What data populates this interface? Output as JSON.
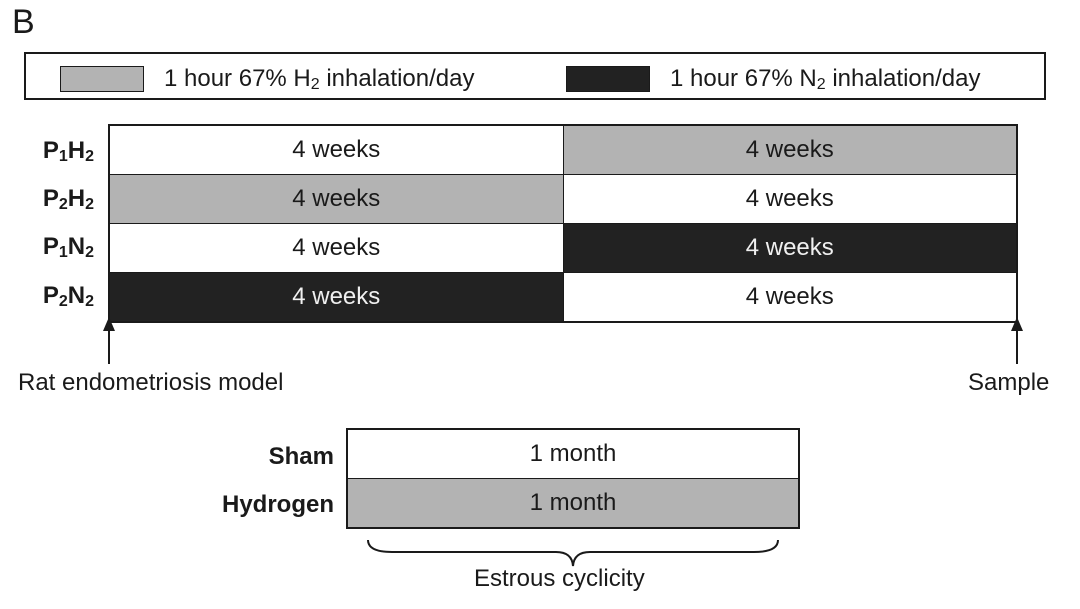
{
  "panel_label": "B",
  "legend": {
    "items": [
      {
        "text_before": "1 hour 67% H",
        "sub": "2",
        "text_after": " inhalation/day",
        "color": "#b3b3b3"
      },
      {
        "text_before": "1 hour 67% N",
        "sub": "2",
        "text_after": " inhalation/day",
        "color": "#222222"
      }
    ]
  },
  "protocol": {
    "rows": [
      {
        "label_main": "P",
        "label_sub1": "1",
        "label_mid": "H",
        "label_sub2": "2",
        "periods": [
          {
            "text": "4 weeks",
            "fill": "white"
          },
          {
            "text": "4 weeks",
            "fill": "grey"
          }
        ]
      },
      {
        "label_main": "P",
        "label_sub1": "2",
        "label_mid": "H",
        "label_sub2": "2",
        "periods": [
          {
            "text": "4 weeks",
            "fill": "grey"
          },
          {
            "text": "4 weeks",
            "fill": "white"
          }
        ]
      },
      {
        "label_main": "P",
        "label_sub1": "1",
        "label_mid": "N",
        "label_sub2": "2",
        "periods": [
          {
            "text": "4 weeks",
            "fill": "white"
          },
          {
            "text": "4 weeks",
            "fill": "dark"
          }
        ]
      },
      {
        "label_main": "P",
        "label_sub1": "2",
        "label_mid": "N",
        "label_sub2": "2",
        "periods": [
          {
            "text": "4 weeks",
            "fill": "dark"
          },
          {
            "text": "4 weeks",
            "fill": "white"
          }
        ]
      }
    ],
    "start_note": "Rat endometriosis model",
    "end_note": "Sample"
  },
  "cyclicity": {
    "rows": [
      {
        "label": "Sham",
        "text": "1 month",
        "fill": "white"
      },
      {
        "label": "Hydrogen",
        "text": "1 month",
        "fill": "grey"
      }
    ],
    "brace_label": "Estrous cyclicity"
  }
}
